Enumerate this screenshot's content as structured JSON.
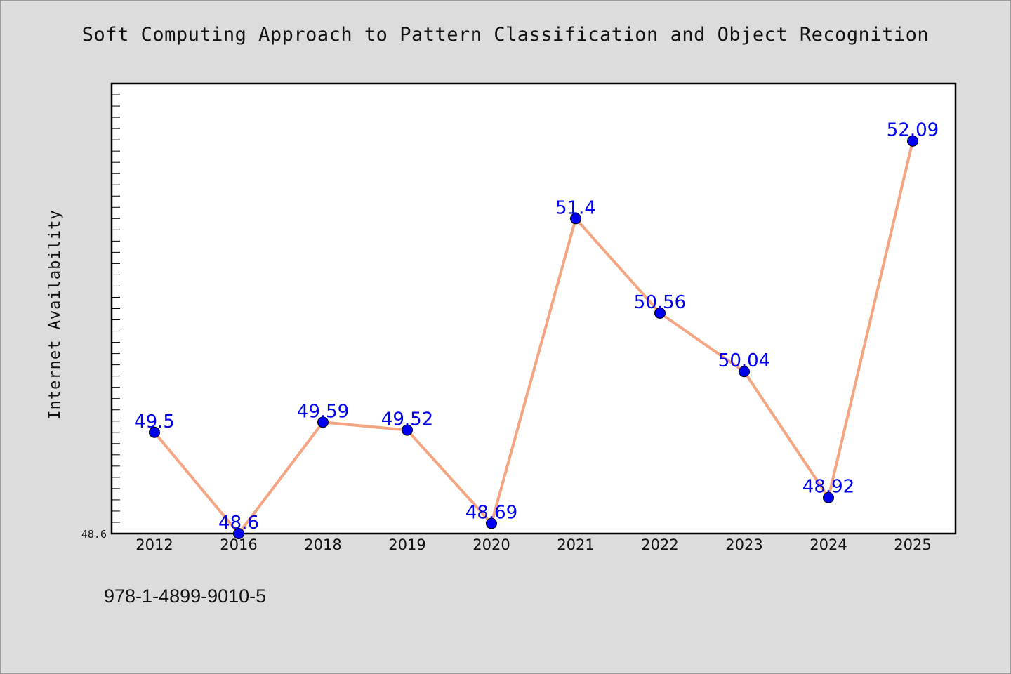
{
  "chart_data": {
    "type": "line",
    "title": "Soft Computing Approach to Pattern Classification and Object Recognition",
    "ylabel": "Internet Availability",
    "xlabel": "",
    "categories": [
      "2012",
      "2016",
      "2018",
      "2019",
      "2020",
      "2021",
      "2022",
      "2023",
      "2024",
      "2025"
    ],
    "series": [
      {
        "values": [
          49.5,
          48.6,
          49.59,
          49.52,
          48.69,
          51.4,
          50.56,
          50.04,
          48.92,
          52.09
        ],
        "labels": [
          "49.5",
          "48.6",
          "49.59",
          "49.52",
          "48.69",
          "51.4",
          "50.56",
          "50.04",
          "48.92",
          "52.09"
        ],
        "line_color": "#f4a582",
        "marker_color": "#0000ee"
      }
    ],
    "ylim": [
      48.6,
      52.6
    ],
    "y_tick_labels": [
      "48.6"
    ],
    "grid": false,
    "legend": "none"
  },
  "footer": {
    "isbn": "978-1-4899-9010-5"
  }
}
